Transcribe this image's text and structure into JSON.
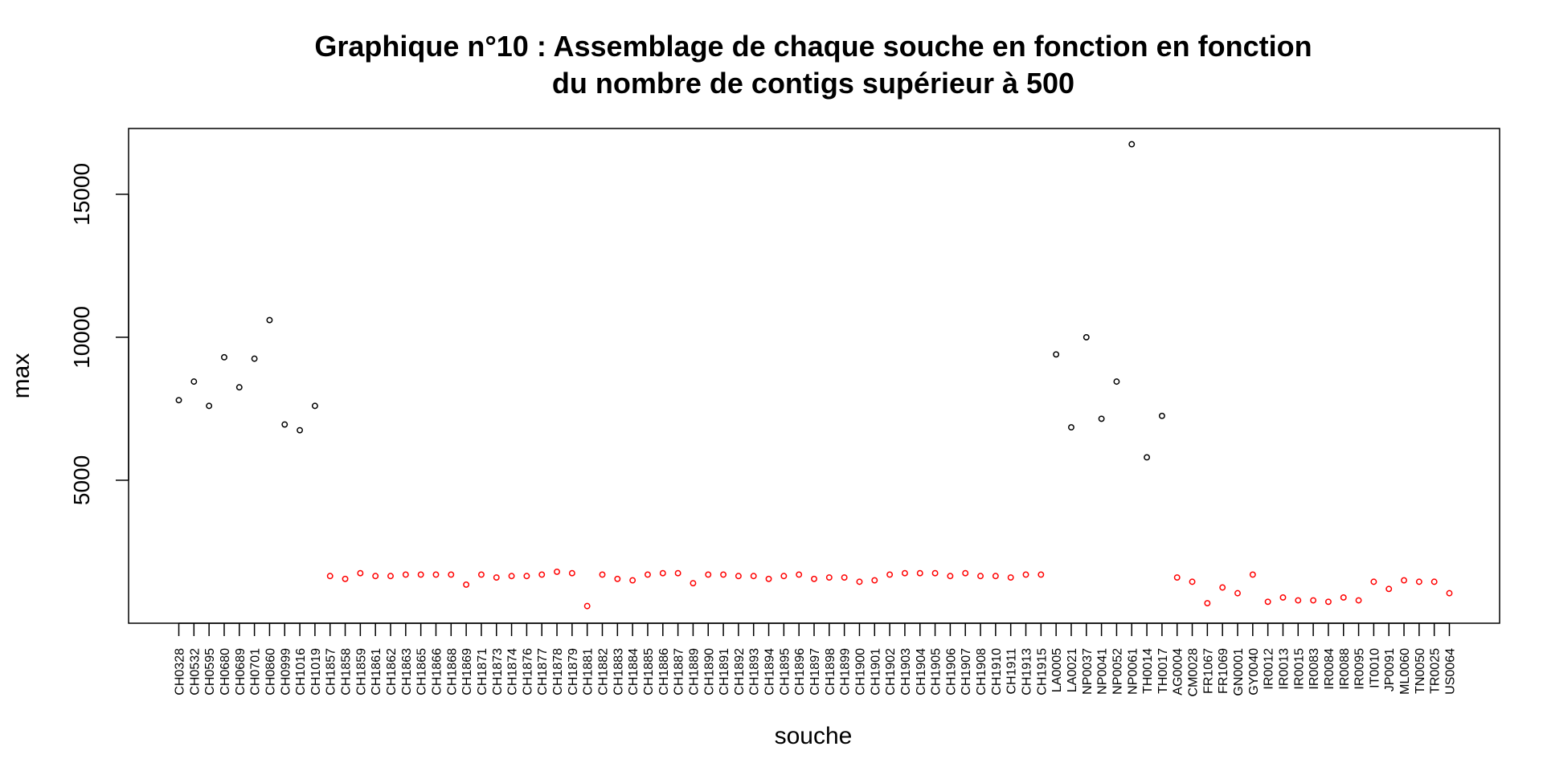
{
  "chart_data": {
    "type": "scatter",
    "title_line1": "Graphique n°10 : Assemblage de chaque souche en fonction en fonction",
    "title_line2": "du nombre de contigs supérieur à 500",
    "xlabel": "souche",
    "ylabel": "max",
    "ylim": [
      0,
      17300
    ],
    "yticks": [
      5000,
      10000,
      15000
    ],
    "grid": false,
    "legend": "none",
    "colors": {
      "highlight": "#000000",
      "default": "#ff0000"
    },
    "categories": [
      "CH0328",
      "CH0532",
      "CH0595",
      "CH0680",
      "CH0689",
      "CH0701",
      "CH0860",
      "CH0999",
      "CH1016",
      "CH1019",
      "CH1857",
      "CH1858",
      "CH1859",
      "CH1861",
      "CH1862",
      "CH1863",
      "CH1865",
      "CH1866",
      "CH1868",
      "CH1869",
      "CH1871",
      "CH1873",
      "CH1874",
      "CH1876",
      "CH1877",
      "CH1878",
      "CH1879",
      "CH1881",
      "CH1882",
      "CH1883",
      "CH1884",
      "CH1885",
      "CH1886",
      "CH1887",
      "CH1889",
      "CH1890",
      "CH1891",
      "CH1892",
      "CH1893",
      "CH1894",
      "CH1895",
      "CH1896",
      "CH1897",
      "CH1898",
      "CH1899",
      "CH1900",
      "CH1901",
      "CH1902",
      "CH1903",
      "CH1904",
      "CH1905",
      "CH1906",
      "CH1907",
      "CH1908",
      "CH1910",
      "CH1911",
      "CH1913",
      "CH1915",
      "LA0005",
      "LA0021",
      "NP0037",
      "NP0041",
      "NP0052",
      "NP0061",
      "TH0014",
      "TH0017",
      "AG0004",
      "CM0028",
      "FR1067",
      "FR1069",
      "GN0001",
      "GY0040",
      "IR0012",
      "IR0013",
      "IR0015",
      "IR0083",
      "IR0084",
      "IR0088",
      "IR0095",
      "IT0010",
      "JP0091",
      "ML0060",
      "TN0050",
      "TR0025",
      "US0064"
    ],
    "values": [
      7800,
      8450,
      7600,
      9300,
      8250,
      9250,
      10600,
      6950,
      6750,
      7600,
      1650,
      1550,
      1750,
      1650,
      1650,
      1700,
      1700,
      1700,
      1700,
      1350,
      1700,
      1600,
      1650,
      1650,
      1700,
      1800,
      1750,
      600,
      1700,
      1550,
      1500,
      1700,
      1750,
      1750,
      1400,
      1700,
      1700,
      1650,
      1650,
      1550,
      1650,
      1700,
      1550,
      1600,
      1600,
      1450,
      1500,
      1700,
      1750,
      1750,
      1750,
      1650,
      1750,
      1650,
      1650,
      1600,
      1700,
      1700,
      9400,
      6850,
      10000,
      7150,
      8450,
      16750,
      5800,
      7250,
      1600,
      1450,
      700,
      1250,
      1050,
      1700,
      750,
      900,
      800,
      800,
      750,
      900,
      800,
      1450,
      1200,
      1500,
      1450,
      1450,
      1050
    ],
    "highlight": [
      true,
      true,
      true,
      true,
      true,
      true,
      true,
      true,
      true,
      true,
      false,
      false,
      false,
      false,
      false,
      false,
      false,
      false,
      false,
      false,
      false,
      false,
      false,
      false,
      false,
      false,
      false,
      false,
      false,
      false,
      false,
      false,
      false,
      false,
      false,
      false,
      false,
      false,
      false,
      false,
      false,
      false,
      false,
      false,
      false,
      false,
      false,
      false,
      false,
      false,
      false,
      false,
      false,
      false,
      false,
      false,
      false,
      false,
      true,
      true,
      true,
      true,
      true,
      true,
      true,
      true,
      false,
      false,
      false,
      false,
      false,
      false,
      false,
      false,
      false,
      false,
      false,
      false,
      false,
      false,
      false,
      false,
      false,
      false,
      false
    ]
  }
}
